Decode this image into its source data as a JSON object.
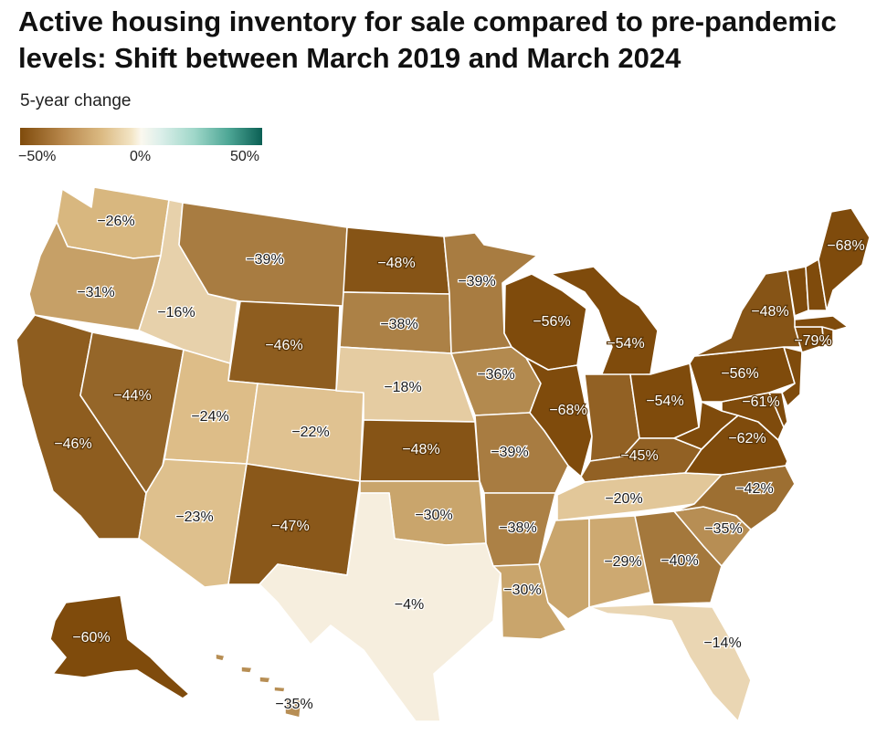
{
  "title": "Active housing inventory for sale compared to pre-pandemic levels: Shift between March 2019 and March 2024",
  "legend": {
    "title": "5-year change",
    "ticks": [
      "−50%",
      "0%",
      "50%"
    ],
    "colors": [
      "#7f4b0c",
      "#dcbb84",
      "#fbf8ef",
      "#9fd7c9",
      "#0b5f54"
    ]
  },
  "states": [
    {
      "id": "WA",
      "label": "−26%",
      "value": -26
    },
    {
      "id": "OR",
      "label": "−31%",
      "value": -31
    },
    {
      "id": "CA",
      "label": "−46%",
      "value": -46
    },
    {
      "id": "NV",
      "label": "−44%",
      "value": -44
    },
    {
      "id": "ID",
      "label": "−16%",
      "value": -16
    },
    {
      "id": "MT",
      "label": "−39%",
      "value": -39
    },
    {
      "id": "WY",
      "label": "−46%",
      "value": -46
    },
    {
      "id": "UT",
      "label": "−24%",
      "value": -24
    },
    {
      "id": "AZ",
      "label": "−23%",
      "value": -23
    },
    {
      "id": "CO",
      "label": "−22%",
      "value": -22
    },
    {
      "id": "NM",
      "label": "−47%",
      "value": -47
    },
    {
      "id": "ND",
      "label": "−48%",
      "value": -48
    },
    {
      "id": "SD",
      "label": "−38%",
      "value": -38
    },
    {
      "id": "NE",
      "label": "−18%",
      "value": -18
    },
    {
      "id": "KS",
      "label": "−48%",
      "value": -48
    },
    {
      "id": "OK",
      "label": "−30%",
      "value": -30
    },
    {
      "id": "TX",
      "label": "−4%",
      "value": -4
    },
    {
      "id": "MN",
      "label": "−39%",
      "value": -39
    },
    {
      "id": "IA",
      "label": "−36%",
      "value": -36
    },
    {
      "id": "MO",
      "label": "−39%",
      "value": -39
    },
    {
      "id": "AR",
      "label": "−38%",
      "value": -38
    },
    {
      "id": "LA",
      "label": "−30%",
      "value": -30
    },
    {
      "id": "WI",
      "label": "−56%",
      "value": -56
    },
    {
      "id": "IL",
      "label": "−68%",
      "value": -68
    },
    {
      "id": "MI",
      "label": "−54%",
      "value": -54
    },
    {
      "id": "IN",
      "label": "",
      "value": -45
    },
    {
      "id": "OH",
      "label": "−54%",
      "value": -54
    },
    {
      "id": "KY",
      "label": "−45%",
      "value": -45
    },
    {
      "id": "TN",
      "label": "−20%",
      "value": -20
    },
    {
      "id": "MS",
      "label": "",
      "value": -30
    },
    {
      "id": "AL",
      "label": "−29%",
      "value": -29
    },
    {
      "id": "GA",
      "label": "−40%",
      "value": -40
    },
    {
      "id": "FL",
      "label": "−14%",
      "value": -14
    },
    {
      "id": "SC",
      "label": "−35%",
      "value": -35
    },
    {
      "id": "NC",
      "label": "−42%",
      "value": -42
    },
    {
      "id": "VA",
      "label": "−62%",
      "value": -62
    },
    {
      "id": "WV",
      "label": "",
      "value": -60
    },
    {
      "id": "MD",
      "label": "−61%",
      "value": -61
    },
    {
      "id": "DE",
      "label": "",
      "value": -58
    },
    {
      "id": "PA",
      "label": "−56%",
      "value": -56
    },
    {
      "id": "NJ",
      "label": "",
      "value": -62
    },
    {
      "id": "NY",
      "label": "−48%",
      "value": -48
    },
    {
      "id": "CT",
      "label": "−79%",
      "value": -79
    },
    {
      "id": "RI",
      "label": "",
      "value": -70
    },
    {
      "id": "MA",
      "label": "",
      "value": -60
    },
    {
      "id": "VT",
      "label": "",
      "value": -60
    },
    {
      "id": "NH",
      "label": "",
      "value": -62
    },
    {
      "id": "ME",
      "label": "−68%",
      "value": -68
    },
    {
      "id": "AK",
      "label": "−60%",
      "value": -60
    },
    {
      "id": "HI",
      "label": "−35%",
      "value": -35
    }
  ]
}
